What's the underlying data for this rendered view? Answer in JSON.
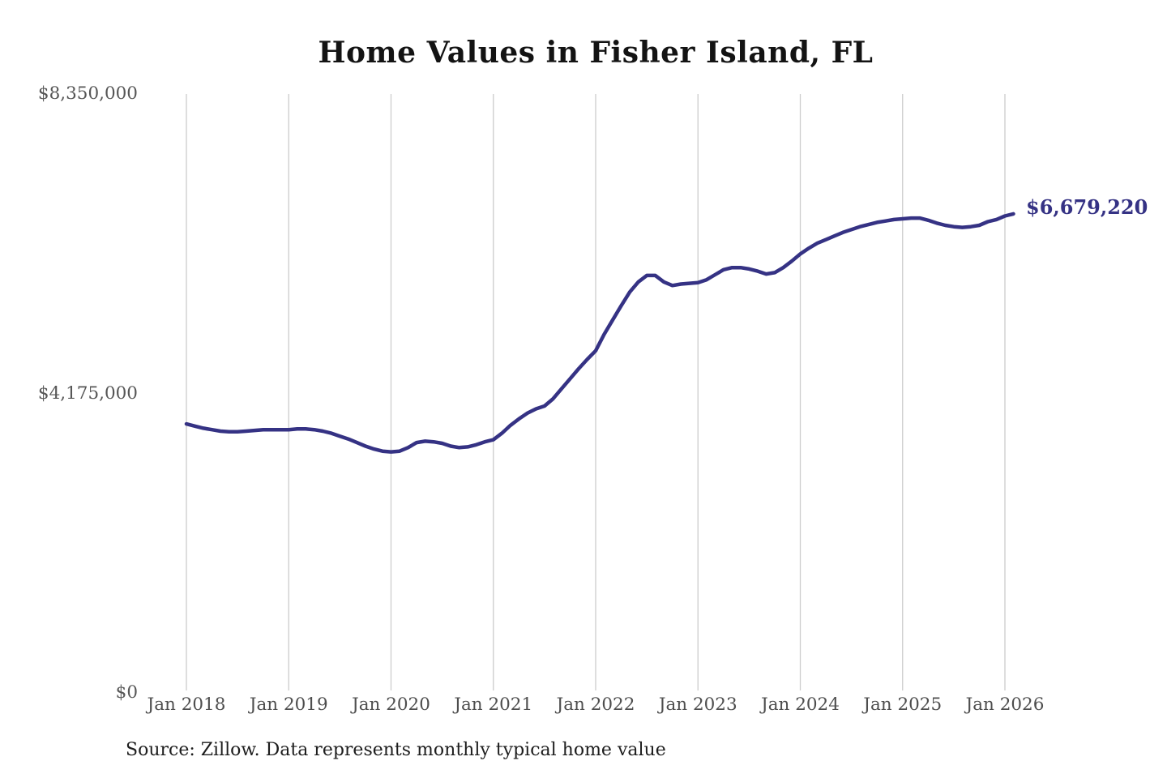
{
  "chart_data": {
    "type": "line",
    "title": "Home Values in Fisher Island, FL",
    "series_name": "Monthly typical home value",
    "source_note": "Source: Zillow. Data represents monthly typical home value",
    "annotation": {
      "text": "$6,679,220",
      "value": 6679220,
      "position": "end-of-line"
    },
    "line_color": "#353284",
    "grid_color": "#cccccc",
    "ylim": [
      0,
      8350000
    ],
    "yticks": [
      {
        "label": "$0",
        "value": 0
      },
      {
        "label": "$4,175,000",
        "value": 4175000
      },
      {
        "label": "$8,350,000",
        "value": 8350000
      }
    ],
    "xticks": [
      "Jan 2018",
      "Jan 2019",
      "Jan 2020",
      "Jan 2021",
      "Jan 2022",
      "Jan 2023",
      "Jan 2024",
      "Jan 2025",
      "Jan 2026"
    ],
    "x": [
      "2018-01",
      "2018-02",
      "2018-03",
      "2018-04",
      "2018-05",
      "2018-06",
      "2018-07",
      "2018-08",
      "2018-09",
      "2018-10",
      "2018-11",
      "2018-12",
      "2019-01",
      "2019-02",
      "2019-03",
      "2019-04",
      "2019-05",
      "2019-06",
      "2019-07",
      "2019-08",
      "2019-09",
      "2019-10",
      "2019-11",
      "2019-12",
      "2020-01",
      "2020-02",
      "2020-03",
      "2020-04",
      "2020-05",
      "2020-06",
      "2020-07",
      "2020-08",
      "2020-09",
      "2020-10",
      "2020-11",
      "2020-12",
      "2021-01",
      "2021-02",
      "2021-03",
      "2021-04",
      "2021-05",
      "2021-06",
      "2021-07",
      "2021-08",
      "2021-09",
      "2021-10",
      "2021-11",
      "2021-12",
      "2022-01",
      "2022-02",
      "2022-03",
      "2022-04",
      "2022-05",
      "2022-06",
      "2022-07",
      "2022-08",
      "2022-09",
      "2022-10",
      "2022-11",
      "2022-12",
      "2023-01",
      "2023-02",
      "2023-03",
      "2023-04",
      "2023-05",
      "2023-06",
      "2023-07",
      "2023-08",
      "2023-09",
      "2023-10",
      "2023-11",
      "2023-12",
      "2024-01",
      "2024-02",
      "2024-03",
      "2024-04",
      "2024-05",
      "2024-06",
      "2024-07",
      "2024-08",
      "2024-09",
      "2024-10",
      "2024-11",
      "2024-12",
      "2025-01",
      "2025-02",
      "2025-03",
      "2025-04",
      "2025-05",
      "2025-06",
      "2025-07",
      "2025-08",
      "2025-09",
      "2025-10",
      "2025-11",
      "2025-12",
      "2026-01",
      "2026-02"
    ],
    "values": [
      3750000,
      3720000,
      3690000,
      3670000,
      3650000,
      3640000,
      3640000,
      3650000,
      3660000,
      3670000,
      3670000,
      3670000,
      3670000,
      3680000,
      3680000,
      3670000,
      3650000,
      3620000,
      3580000,
      3540000,
      3490000,
      3440000,
      3400000,
      3370000,
      3360000,
      3370000,
      3420000,
      3490000,
      3510000,
      3500000,
      3480000,
      3440000,
      3420000,
      3430000,
      3460000,
      3500000,
      3530000,
      3620000,
      3730000,
      3820000,
      3900000,
      3960000,
      4000000,
      4100000,
      4240000,
      4380000,
      4520000,
      4650000,
      4770000,
      5000000,
      5200000,
      5400000,
      5590000,
      5730000,
      5820000,
      5820000,
      5730000,
      5680000,
      5700000,
      5710000,
      5720000,
      5760000,
      5830000,
      5900000,
      5930000,
      5930000,
      5910000,
      5880000,
      5840000,
      5860000,
      5930000,
      6020000,
      6120000,
      6200000,
      6270000,
      6320000,
      6370000,
      6420000,
      6460000,
      6500000,
      6530000,
      6560000,
      6580000,
      6600000,
      6610000,
      6620000,
      6620000,
      6590000,
      6550000,
      6520000,
      6500000,
      6490000,
      6500000,
      6520000,
      6570000,
      6600000,
      6650000,
      6679220
    ],
    "legend": "none",
    "grid": "vertical-yearly"
  }
}
